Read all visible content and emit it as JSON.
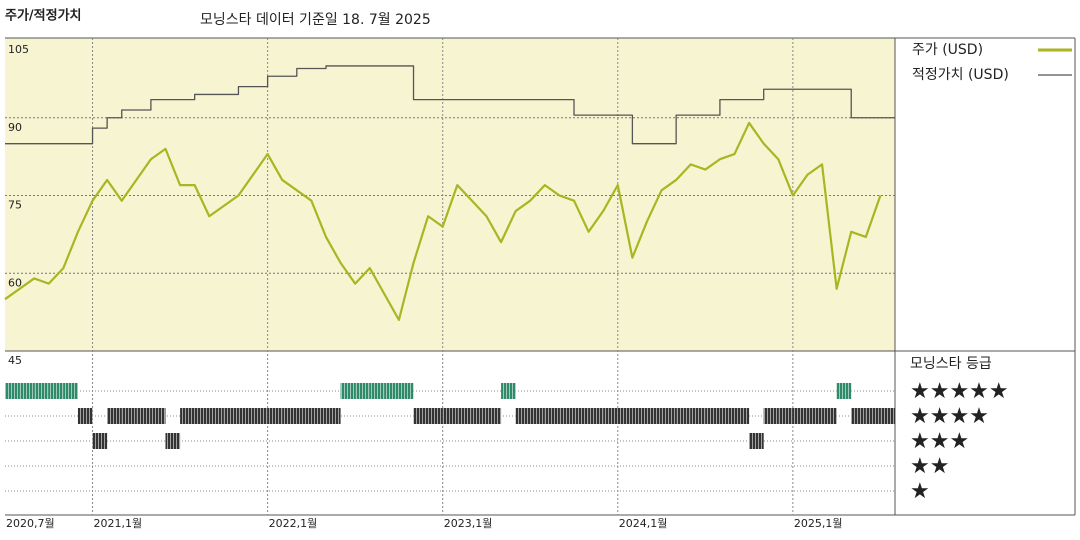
{
  "chart_data": {
    "type": "line",
    "title": "주가/적정가치",
    "subtitle": "모닝스타 데이터 기준일 18. 7월 2025",
    "x": [
      "2020-07",
      "2020-08",
      "2020-09",
      "2020-10",
      "2020-11",
      "2020-12",
      "2021-01",
      "2021-02",
      "2021-03",
      "2021-04",
      "2021-05",
      "2021-06",
      "2021-07",
      "2021-08",
      "2021-09",
      "2021-10",
      "2021-11",
      "2021-12",
      "2022-01",
      "2022-02",
      "2022-03",
      "2022-04",
      "2022-05",
      "2022-06",
      "2022-07",
      "2022-08",
      "2022-09",
      "2022-10",
      "2022-11",
      "2022-12",
      "2023-01",
      "2023-02",
      "2023-03",
      "2023-04",
      "2023-05",
      "2023-06",
      "2023-07",
      "2023-08",
      "2023-09",
      "2023-10",
      "2023-11",
      "2023-12",
      "2024-01",
      "2024-02",
      "2024-03",
      "2024-04",
      "2024-05",
      "2024-06",
      "2024-07",
      "2024-08",
      "2024-09",
      "2024-10",
      "2024-11",
      "2024-12",
      "2025-01",
      "2025-02",
      "2025-03",
      "2025-04",
      "2025-05",
      "2025-06",
      "2025-07"
    ],
    "xlim": [
      "2020-07",
      "2025-08"
    ],
    "xticks": [
      {
        "value": "2020-07",
        "label": "2020,7월"
      },
      {
        "value": "2021-01",
        "label": "2021,1월"
      },
      {
        "value": "2022-01",
        "label": "2022,1월"
      },
      {
        "value": "2023-01",
        "label": "2023,1월"
      },
      {
        "value": "2024-01",
        "label": "2024,1월"
      },
      {
        "value": "2025-01",
        "label": "2025,1월"
      }
    ],
    "ylim": [
      45,
      105
    ],
    "yticks": [
      105,
      90,
      75,
      60,
      45
    ],
    "grid": true,
    "series": [
      {
        "name": "주가 (USD)",
        "color": "#a9b521",
        "values": [
          55,
          57,
          59,
          58,
          61,
          68,
          74,
          78,
          74,
          78,
          82,
          84,
          77,
          77,
          71,
          73,
          75,
          79,
          83,
          78,
          76,
          74,
          67,
          62,
          58,
          61,
          56,
          51,
          62,
          71,
          69,
          77,
          74,
          71,
          66,
          72,
          74,
          77,
          75,
          74,
          68,
          72,
          77,
          63,
          70,
          76,
          78,
          81,
          80,
          82,
          83,
          89,
          85,
          82,
          75,
          79,
          81,
          57,
          68,
          67,
          75
        ]
      },
      {
        "name": "적정가치 (USD)",
        "color": "#555555",
        "step": true,
        "values": [
          85,
          85,
          85,
          85,
          85,
          85,
          88,
          90,
          91.5,
          91.5,
          93.5,
          93.5,
          93.5,
          94.5,
          94.5,
          94.5,
          96,
          96,
          98,
          98,
          99.5,
          99.5,
          100,
          100,
          100,
          100,
          100,
          100,
          93.5,
          93.5,
          93.5,
          93.5,
          93.5,
          93.5,
          93.5,
          93.5,
          93.5,
          93.5,
          93.5,
          90.5,
          90.5,
          90.5,
          90.5,
          85,
          85,
          85,
          90.5,
          90.5,
          90.5,
          93.5,
          93.5,
          93.5,
          95.5,
          95.5,
          95.5,
          95.5,
          95.5,
          95.5,
          90,
          90,
          90
        ]
      }
    ],
    "ratings": {
      "title": "모닝스타 등급",
      "values": [
        5,
        5,
        5,
        5,
        5,
        4,
        3,
        4,
        4,
        4,
        4,
        3,
        4,
        4,
        4,
        4,
        4,
        4,
        4,
        4,
        4,
        4,
        4,
        5,
        5,
        5,
        5,
        5,
        4,
        4,
        4,
        4,
        4,
        4,
        5,
        4,
        4,
        4,
        4,
        4,
        4,
        4,
        4,
        4,
        4,
        4,
        4,
        4,
        4,
        4,
        4,
        3,
        4,
        4,
        4,
        4,
        4,
        5,
        4,
        4,
        4
      ],
      "levels": [
        5,
        4,
        3,
        2,
        1
      ],
      "labels": [
        "★★★★★",
        "★★★★",
        "★★★",
        "★★",
        "★"
      ],
      "colors": {
        "5": "#2f8a6a",
        "4": "#333333",
        "3": "#333333",
        "2": "#333333",
        "1": "#333333"
      }
    }
  }
}
